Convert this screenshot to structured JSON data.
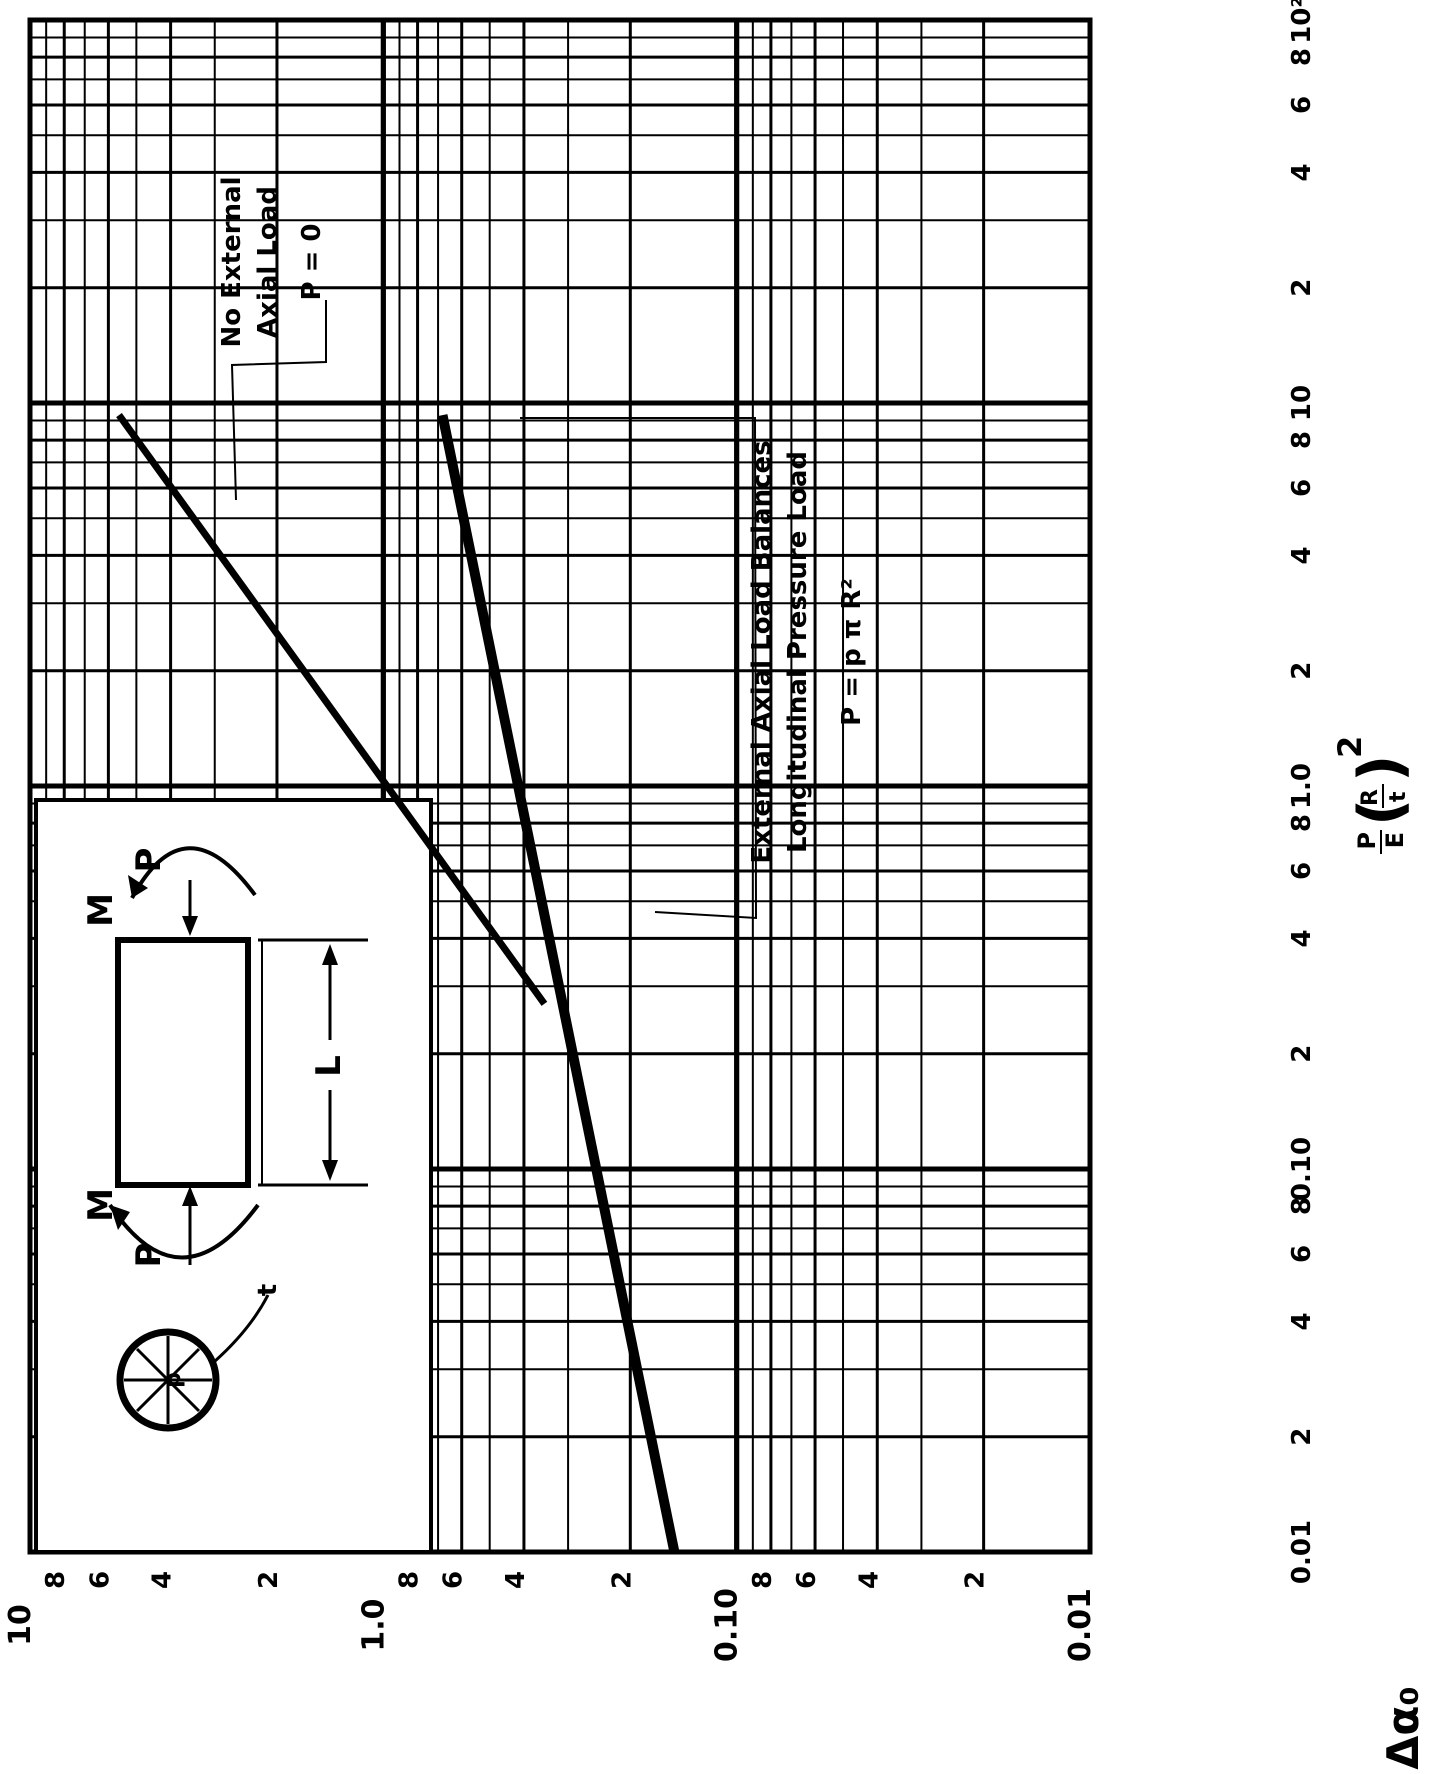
{
  "chart_data": {
    "type": "line",
    "x_scale": "log",
    "y_scale": "log",
    "xlim": [
      0.01,
      100
    ],
    "ylim": [
      0.01,
      10
    ],
    "xlabel": "P/E (R/t)^2",
    "ylabel": "Δα₀",
    "x_major_ticks": [
      "0.01",
      "0.10",
      "1.0",
      "10",
      "10²"
    ],
    "x_minor_ticks": [
      "2",
      "4",
      "6",
      "8"
    ],
    "y_major_ticks": [
      "0.01",
      "0.10",
      "1.0",
      "10"
    ],
    "y_minor_ticks": [
      "2",
      "4",
      "6",
      "8"
    ],
    "grid": true,
    "series": [
      {
        "name": "No External Axial Load",
        "condition": "P = 0",
        "x": [
          0.27,
          9.3
        ],
        "y": [
          0.35,
          5.6
        ]
      },
      {
        "name": "External Axial Load Balances Longitudinal Pressure Load",
        "condition": "P = p π R²",
        "x": [
          0.01,
          9.3
        ],
        "y": [
          0.15,
          0.68
        ]
      }
    ],
    "annotations": {
      "no_load": {
        "line1": "No External",
        "line2": "Axial Load",
        "line3": "P = 0"
      },
      "balanced_load": {
        "line1": "External Axial Load Balances",
        "line2": "Longitudinal Pressure Load",
        "line3": "P = p π R²"
      }
    },
    "inset": {
      "force_label": "P",
      "moment_label": "M",
      "length_label": "L",
      "pressure_label": "p",
      "thickness_label": "t"
    }
  }
}
